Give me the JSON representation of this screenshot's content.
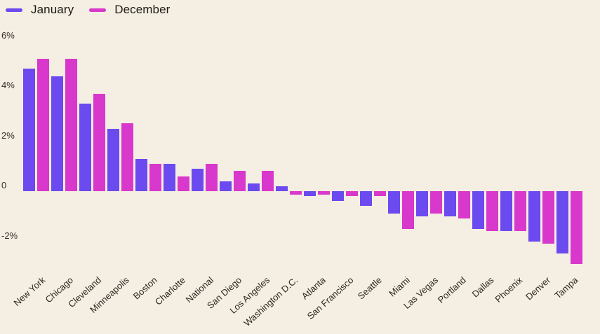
{
  "colors": {
    "background": "#f5eee2",
    "january": "#6b4aef",
    "december": "#d838cb",
    "text": "#1c1b16",
    "axis_text": "#34312a"
  },
  "legend": {
    "items": [
      "January",
      "December"
    ],
    "position": "top-left"
  },
  "y_axis": {
    "tick_labels": [
      "6%",
      "4%",
      "2%",
      "0",
      "-2%"
    ]
  },
  "chart_data": {
    "type": "bar",
    "title": "",
    "xlabel": "",
    "ylabel": "",
    "ylim": [
      -3,
      6
    ],
    "grid": false,
    "legend_position": "top-left",
    "categories": [
      "New York",
      "Chicago",
      "Cleveland",
      "Minneapolis",
      "Boston",
      "Charlotte",
      "National",
      "San Diego",
      "Los Angeles",
      "Washington D.C.",
      "Atlanta",
      "San Francisco",
      "Seattle",
      "Miami",
      "Las Vegas",
      "Portland",
      "Dallas",
      "Phoenix",
      "Denver",
      "Tampa"
    ],
    "y_ticks": [
      {
        "label": "6%",
        "value": 6
      },
      {
        "label": "4%",
        "value": 4
      },
      {
        "label": "2%",
        "value": 2
      },
      {
        "label": "0",
        "value": 0
      },
      {
        "label": "-2%",
        "value": -2
      }
    ],
    "series": [
      {
        "name": "January",
        "color": "#6b4aef",
        "values": [
          4.9,
          4.6,
          3.5,
          2.5,
          1.3,
          1.1,
          0.9,
          0.4,
          0.3,
          0.2,
          -0.2,
          -0.4,
          -0.6,
          -0.9,
          -1.0,
          -1.0,
          -1.5,
          -1.6,
          -2.0,
          -2.5
        ]
      },
      {
        "name": "December",
        "color": "#d838cb",
        "values": [
          5.3,
          5.3,
          3.9,
          2.7,
          1.1,
          0.6,
          1.1,
          0.8,
          0.8,
          -0.1,
          -0.1,
          -0.2,
          -0.2,
          -1.5,
          -0.9,
          -1.1,
          -1.6,
          -1.6,
          -2.1,
          -2.9
        ]
      }
    ]
  }
}
